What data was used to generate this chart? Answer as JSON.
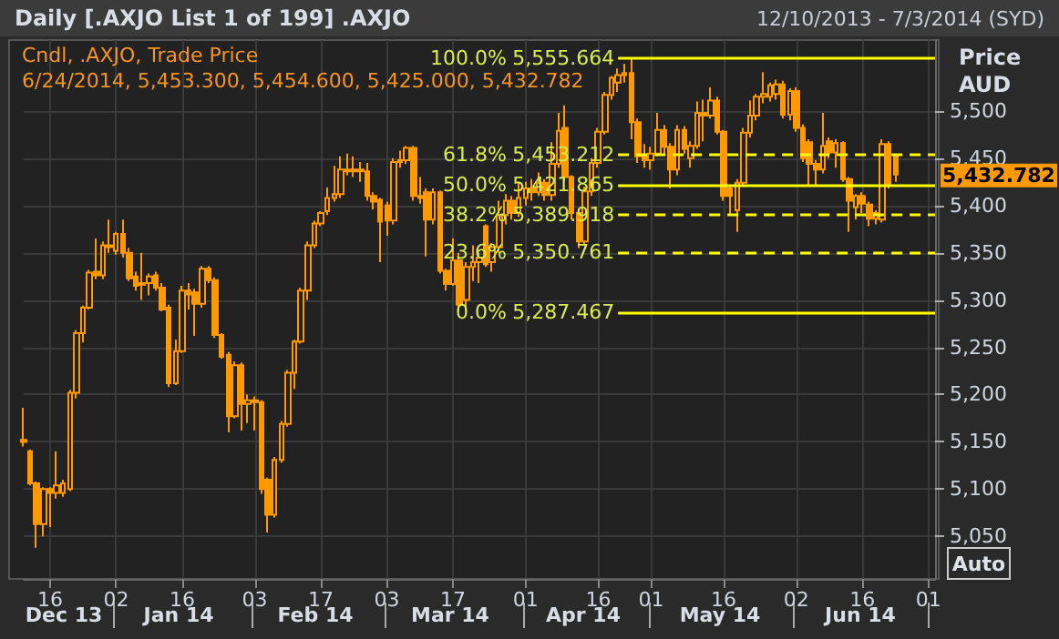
{
  "chart_data": {
    "type": "candlestick",
    "title": "Daily [.AXJO List 1 of 199] .AXJO",
    "subtitle": "12/10/2013 - 7/3/2014 (SYD)",
    "ylabel": "Price AUD",
    "color": "#ff9900",
    "grid": true,
    "categories": [
      null,
      null,
      null,
      null,
      "16",
      null,
      null,
      null,
      null,
      null,
      null,
      null,
      null,
      null,
      "02",
      null,
      null,
      null,
      null,
      null,
      null,
      null,
      null,
      null,
      "16",
      null,
      null,
      null,
      null,
      null,
      null,
      null,
      null,
      null,
      null,
      "03",
      null,
      null,
      null,
      null,
      null,
      null,
      null,
      null,
      null,
      "17",
      null,
      null,
      null,
      null,
      null,
      null,
      null,
      null,
      null,
      "03",
      null,
      null,
      null,
      null,
      null,
      null,
      null,
      null,
      null,
      "17",
      null,
      null,
      null,
      null,
      null,
      null,
      null,
      null,
      null,
      null,
      "01",
      null,
      null,
      null,
      null,
      null,
      null,
      null,
      null,
      null,
      null,
      "16",
      null,
      null,
      null,
      null,
      null,
      null,
      null,
      "01",
      null,
      null,
      null,
      null,
      null,
      null,
      null,
      null,
      null,
      null,
      "16",
      null,
      null,
      null,
      null,
      null,
      null,
      null,
      null,
      null,
      null,
      "02",
      null,
      null,
      null,
      null,
      null,
      null,
      null,
      null,
      null,
      "16",
      null,
      null,
      null,
      null,
      null,
      null,
      null,
      null,
      null,
      "01",
      null
    ],
    "ohlc": [
      [
        5152,
        5186,
        5145,
        5150
      ],
      [
        5140,
        5142,
        5104,
        5106
      ],
      [
        5106,
        5108,
        5038,
        5063
      ],
      [
        5063,
        5102,
        5050,
        5100
      ],
      [
        5100,
        5102,
        5060,
        5096
      ],
      [
        5096,
        5140,
        5090,
        5104
      ],
      [
        5096,
        5110,
        5092,
        5106
      ],
      [
        5100,
        5205,
        5098,
        5202
      ],
      [
        5202,
        5268,
        5196,
        5265
      ],
      [
        5265,
        5294,
        5255,
        5292
      ],
      [
        5292,
        5332,
        5290,
        5329
      ],
      [
        5330,
        5365,
        5322,
        5326
      ],
      [
        5326,
        5362,
        5322,
        5358
      ],
      [
        5356,
        5385,
        5350,
        5358
      ],
      [
        5352,
        5372,
        5348,
        5370
      ],
      [
        5370,
        5385,
        5345,
        5350
      ],
      [
        5350,
        5355,
        5320,
        5323
      ],
      [
        5325,
        5330,
        5310,
        5315
      ],
      [
        5316,
        5350,
        5300,
        5318
      ],
      [
        5318,
        5328,
        5305,
        5325
      ],
      [
        5326,
        5330,
        5310,
        5313
      ],
      [
        5313,
        5318,
        5288,
        5290
      ],
      [
        5292,
        5295,
        5208,
        5212
      ],
      [
        5212,
        5258,
        5210,
        5246
      ],
      [
        5246,
        5315,
        5244,
        5310
      ],
      [
        5310,
        5318,
        5290,
        5306
      ],
      [
        5308,
        5312,
        5262,
        5296
      ],
      [
        5296,
        5336,
        5292,
        5333
      ],
      [
        5333,
        5336,
        5318,
        5321
      ],
      [
        5321,
        5324,
        5260,
        5263
      ],
      [
        5263,
        5265,
        5238,
        5240
      ],
      [
        5242,
        5245,
        5160,
        5177
      ],
      [
        5177,
        5235,
        5175,
        5231
      ],
      [
        5231,
        5234,
        5162,
        5190
      ],
      [
        5190,
        5200,
        5170,
        5194
      ],
      [
        5194,
        5198,
        5162,
        5192
      ],
      [
        5192,
        5194,
        5095,
        5100
      ],
      [
        5110,
        5112,
        5054,
        5073
      ],
      [
        5073,
        5134,
        5070,
        5131
      ],
      [
        5131,
        5172,
        5128,
        5169
      ],
      [
        5169,
        5226,
        5166,
        5223
      ],
      [
        5223,
        5258,
        5206,
        5256
      ],
      [
        5256,
        5313,
        5254,
        5310
      ],
      [
        5310,
        5362,
        5300,
        5358
      ],
      [
        5358,
        5384,
        5355,
        5381
      ],
      [
        5381,
        5394,
        5378,
        5392
      ],
      [
        5394,
        5419,
        5390,
        5408
      ],
      [
        5408,
        5442,
        5404,
        5412
      ],
      [
        5412,
        5452,
        5408,
        5438
      ],
      [
        5438,
        5455,
        5432,
        5436
      ],
      [
        5436,
        5452,
        5430,
        5438
      ],
      [
        5438,
        5446,
        5425,
        5436
      ],
      [
        5436,
        5445,
        5405,
        5410
      ],
      [
        5410,
        5414,
        5396,
        5404
      ],
      [
        5406,
        5408,
        5340,
        5383
      ],
      [
        5400,
        5404,
        5368,
        5384
      ],
      [
        5384,
        5450,
        5380,
        5446
      ],
      [
        5446,
        5458,
        5440,
        5448
      ],
      [
        5448,
        5463,
        5444,
        5461
      ],
      [
        5461,
        5463,
        5405,
        5410
      ],
      [
        5410,
        5430,
        5402,
        5408
      ],
      [
        5414,
        5418,
        5346,
        5385
      ],
      [
        5385,
        5418,
        5380,
        5414
      ],
      [
        5414,
        5416,
        5328,
        5331
      ],
      [
        5331,
        5333,
        5310,
        5317
      ],
      [
        5317,
        5365,
        5315,
        5342
      ],
      [
        5342,
        5350,
        5288,
        5295
      ],
      [
        5300,
        5340,
        5288,
        5335
      ],
      [
        5335,
        5358,
        5320,
        5340
      ],
      [
        5340,
        5350,
        5318,
        5345
      ],
      [
        5378,
        5380,
        5335,
        5338
      ],
      [
        5340,
        5360,
        5330,
        5356
      ],
      [
        5356,
        5405,
        5350,
        5390
      ],
      [
        5390,
        5412,
        5380,
        5405
      ],
      [
        5405,
        5410,
        5385,
        5392
      ],
      [
        5392,
        5424,
        5388,
        5408
      ],
      [
        5408,
        5425,
        5400,
        5418
      ],
      [
        5418,
        5428,
        5405,
        5414
      ],
      [
        5414,
        5435,
        5410,
        5424
      ],
      [
        5424,
        5428,
        5405,
        5411
      ],
      [
        5411,
        5467,
        5405,
        5444
      ],
      [
        5444,
        5498,
        5440,
        5479
      ],
      [
        5482,
        5506,
        5425,
        5430
      ],
      [
        5430,
        5432,
        5385,
        5392
      ],
      [
        5392,
        5395,
        5355,
        5362
      ],
      [
        5362,
        5420,
        5358,
        5415
      ],
      [
        5415,
        5450,
        5410,
        5445
      ],
      [
        5445,
        5482,
        5440,
        5478
      ],
      [
        5478,
        5520,
        5475,
        5517
      ],
      [
        5517,
        5537,
        5512,
        5535
      ],
      [
        5530,
        5545,
        5520,
        5538
      ],
      [
        5538,
        5550,
        5530,
        5540
      ],
      [
        5540,
        5555.664,
        5470,
        5488
      ],
      [
        5488,
        5492,
        5445,
        5452
      ],
      [
        5452,
        5465,
        5440,
        5448
      ],
      [
        5448,
        5462,
        5438,
        5455
      ],
      [
        5455,
        5498,
        5452,
        5480
      ],
      [
        5480,
        5485,
        5455,
        5462
      ],
      [
        5462,
        5466,
        5418,
        5438
      ],
      [
        5438,
        5485,
        5432,
        5480
      ],
      [
        5480,
        5484,
        5455,
        5460
      ],
      [
        5450,
        5468,
        5440,
        5463
      ],
      [
        5463,
        5510,
        5460,
        5498
      ],
      [
        5498,
        5512,
        5468,
        5495
      ],
      [
        5495,
        5525,
        5492,
        5511
      ],
      [
        5511,
        5515,
        5475,
        5478
      ],
      [
        5478,
        5480,
        5405,
        5410
      ],
      [
        5418,
        5422,
        5391,
        5410
      ],
      [
        5395,
        5428,
        5372,
        5424
      ],
      [
        5424,
        5482,
        5420,
        5477
      ],
      [
        5477,
        5511,
        5472,
        5495
      ],
      [
        5495,
        5518,
        5490,
        5515
      ],
      [
        5515,
        5541,
        5508,
        5518
      ],
      [
        5515,
        5530,
        5510,
        5527
      ],
      [
        5518,
        5533,
        5512,
        5528
      ],
      [
        5528,
        5532,
        5492,
        5496
      ],
      [
        5496,
        5524,
        5490,
        5521
      ],
      [
        5521,
        5525,
        5478,
        5482
      ],
      [
        5482,
        5486,
        5446,
        5450
      ],
      [
        5467,
        5470,
        5420,
        5444
      ],
      [
        5444,
        5448,
        5420,
        5438
      ],
      [
        5438,
        5498,
        5434,
        5463
      ],
      [
        5468,
        5472,
        5450,
        5456
      ],
      [
        5456,
        5470,
        5440,
        5466
      ],
      [
        5466,
        5468,
        5425,
        5428
      ],
      [
        5428,
        5430,
        5372,
        5405
      ],
      [
        5398,
        5412,
        5385,
        5410
      ],
      [
        5410,
        5414,
        5392,
        5402
      ],
      [
        5401,
        5404,
        5378,
        5386
      ],
      [
        5386,
        5395,
        5380,
        5392
      ],
      [
        5385,
        5470,
        5382,
        5465
      ],
      [
        5465,
        5468,
        5418,
        5422
      ],
      [
        5453.3,
        5454.6,
        5425,
        5432.782
      ],
      null,
      null,
      null,
      null,
      null,
      null
    ],
    "ylim": [
      5005,
      5575
    ],
    "yticks": [
      {
        "value": 5050,
        "label": "5,050"
      },
      {
        "value": 5100,
        "label": "5,100"
      },
      {
        "value": 5150,
        "label": "5,150"
      },
      {
        "value": 5200,
        "label": "5,200"
      },
      {
        "value": 5250,
        "label": "5,250"
      },
      {
        "value": 5300,
        "label": "5,300"
      },
      {
        "value": 5350,
        "label": "5,350"
      },
      {
        "value": 5400,
        "label": "5,400"
      },
      {
        "value": 5450,
        "label": "5,450"
      },
      {
        "value": 5500,
        "label": "5,500"
      }
    ],
    "ref_lines": [
      {
        "axis": "y",
        "value": 5555.664,
        "label": "5,555.664",
        "color": "#ffff00",
        "line_style": "solid"
      },
      {
        "axis": "y",
        "value": 5453.212,
        "label": "5,453.212",
        "color": "#ffff00",
        "line_style": "dashed"
      },
      {
        "axis": "y",
        "value": 5421.865,
        "label": "5,421.865",
        "color": "#ffff00",
        "line_style": "solid"
      },
      {
        "axis": "y",
        "value": 5389.918,
        "label": "5,389.918",
        "color": "#ffff00",
        "line_style": "dashed"
      },
      {
        "axis": "y",
        "value": 5350.761,
        "label": "5,350.761",
        "color": "#ffff00",
        "line_style": "dashed"
      },
      {
        "axis": "y",
        "value": 5287.467,
        "label": "5,287.467",
        "color": "#ffff00",
        "line_style": "solid"
      }
    ],
    "annotations": [
      "Cndl, .AXJO, Trade Price",
      "6/24/2014, 5,453.300, 5,454.600, 5,425.000, 5,432.782",
      "Auto",
      "Dec 13",
      "Jan 14",
      "Feb 14",
      "Mar 14",
      "Apr 14",
      "May 14",
      "Jun 14",
      "5,432.782",
      "100.0%",
      "61.8%",
      "50.0%",
      "38.2%",
      "23.6%",
      "0.0%"
    ]
  }
}
